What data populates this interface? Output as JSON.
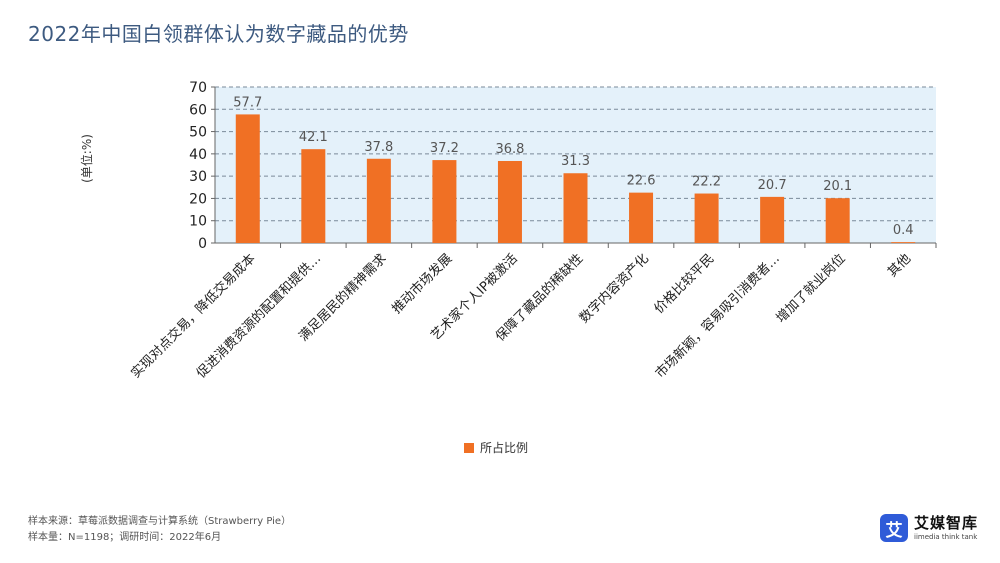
{
  "title": "2022年中国白领群体认为数字藏品的优势",
  "unit_label": "(单位:%)",
  "legend_label": "所占比例",
  "footnotes": {
    "source": "样本来源：草莓派数据调查与计算系统（Strawberry Pie）",
    "sample": "样本量：N=1198；调研时间：2022年6月"
  },
  "brand": {
    "name": "艾媒智库",
    "sub": "iimedia think tank",
    "logo_char": "艾"
  },
  "colors": {
    "bar": "#f07024",
    "plot_bg": "#e4f1fa",
    "grid": "#7a8a99",
    "title": "#3d5a80"
  },
  "chart_data": {
    "type": "bar",
    "title": "2022年中国白领群体认为数字藏品的优势",
    "ylabel": "(单位:%)",
    "xlabel": "",
    "ylim": [
      0,
      70
    ],
    "yticks": [
      0,
      10,
      20,
      30,
      40,
      50,
      60,
      70
    ],
    "grid": true,
    "legend": "bottom-center",
    "categories": [
      "实现对点交易，降低交易成本",
      "促进消费资源的配置和提供…",
      "满足居民的精神需求",
      "推动市场发展",
      "艺术家个人IP被激活",
      "保障了藏品的稀缺性",
      "数字内容资产化",
      "价格比较平民",
      "市场新颖，容易吸引消费者…",
      "增加了就业岗位",
      "其他"
    ],
    "series": [
      {
        "name": "所占比例",
        "values": [
          57.7,
          42.1,
          37.8,
          37.2,
          36.8,
          31.3,
          22.6,
          22.2,
          20.7,
          20.1,
          0.4
        ]
      }
    ]
  }
}
